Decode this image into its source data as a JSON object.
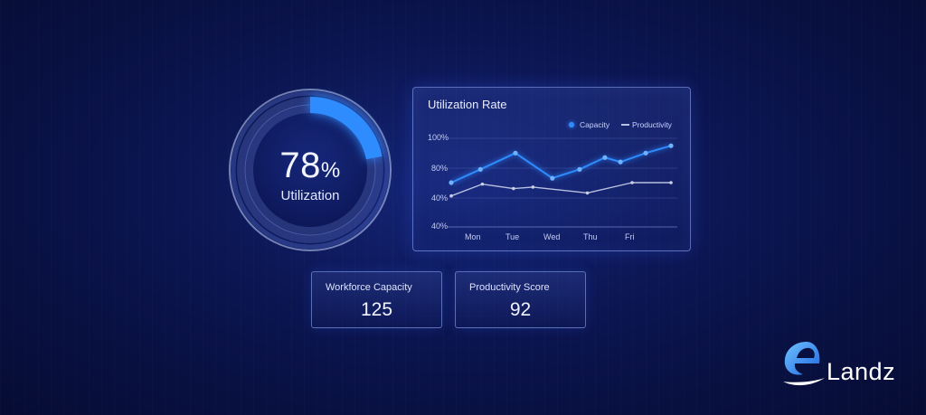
{
  "gauge": {
    "value": "78",
    "unit": "%",
    "label": "Utilization",
    "fraction": 0.22,
    "accent_color": "#2f8cff"
  },
  "rate_panel": {
    "title": "Utilization Rate",
    "legend": {
      "capacity": "Capacity",
      "productivity": "Productivity"
    }
  },
  "chart_data": {
    "type": "line",
    "title": "Utilization Rate",
    "xlabel": "",
    "ylabel": "",
    "y_tick_labels": [
      "100%",
      "80%",
      "40%",
      "40%"
    ],
    "x_tick_labels": [
      "Mon",
      "Tue",
      "Wed",
      "Thu",
      "Fri"
    ],
    "grid": true,
    "legend_position": "top-right",
    "series": [
      {
        "name": "Capacity",
        "color": "#2f8cff",
        "points": [
          [
            0,
            70
          ],
          [
            0.75,
            79
          ],
          [
            1.65,
            90
          ],
          [
            2.6,
            73
          ],
          [
            3.3,
            79
          ],
          [
            3.95,
            87
          ],
          [
            4.35,
            84
          ],
          [
            5.0,
            90
          ],
          [
            5.65,
            95
          ]
        ]
      },
      {
        "name": "Productivity",
        "color": "#b8c0e0",
        "points": [
          [
            0,
            61
          ],
          [
            0.8,
            69
          ],
          [
            1.6,
            66
          ],
          [
            2.1,
            67
          ],
          [
            3.5,
            63
          ],
          [
            4.65,
            70
          ],
          [
            5.65,
            70
          ]
        ]
      }
    ]
  },
  "stats": {
    "workforce_capacity": {
      "label": "Workforce Capacity",
      "value": "125"
    },
    "productivity_score": {
      "label": "Productivity Score",
      "value": "92"
    }
  },
  "brand": {
    "name": "Landz"
  }
}
